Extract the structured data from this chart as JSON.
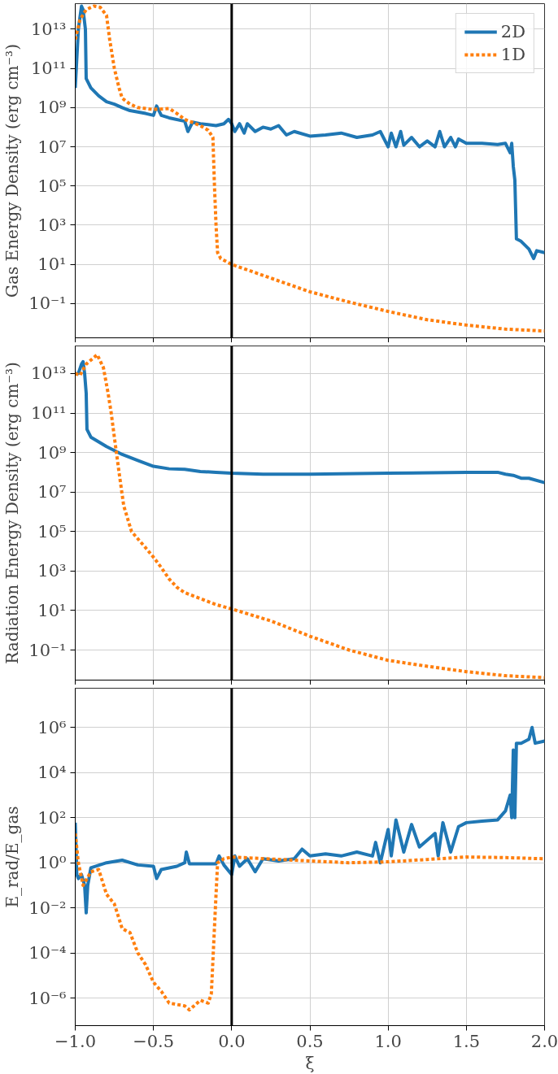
{
  "chart_data": [
    {
      "type": "line",
      "ylabel": "Gas Energy Density (erg cm⁻³)",
      "log": "y",
      "grid": true,
      "legend": "top right",
      "tick_labels": "y",
      "xlim": [
        -1.0,
        2.0
      ],
      "xticks": [
        -1.0,
        -0.5,
        0.0,
        0.5,
        1.0,
        1.5,
        2.0
      ],
      "ylim": [
        0.0018,
        200000000000000.0
      ],
      "yticks": [
        {
          "value": 0.1,
          "label": "10⁻¹"
        },
        {
          "value": 10,
          "label": "10¹"
        },
        {
          "value": 1000,
          "label": "10³"
        },
        {
          "value": 100000,
          "label": "10⁵"
        },
        {
          "value": 10000000.0,
          "label": "10⁷"
        },
        {
          "value": 1000000000.0,
          "label": "10⁹"
        },
        {
          "value": 100000000000.0,
          "label": "10¹¹"
        },
        {
          "value": 10000000000000.0,
          "label": "10¹³"
        }
      ],
      "ref_lines": [
        {
          "axis": "x",
          "value": 0.0,
          "color": "#000000"
        }
      ],
      "series": [
        {
          "name": "2D",
          "color": "#1f77b4",
          "line_style": "solid",
          "x": [
            -1.0,
            -0.98,
            -0.96,
            -0.95,
            -0.935,
            -0.93,
            -0.9,
            -0.85,
            -0.8,
            -0.75,
            -0.7,
            -0.65,
            -0.6,
            -0.55,
            -0.5,
            -0.48,
            -0.45,
            -0.4,
            -0.3,
            -0.28,
            -0.25,
            -0.2,
            -0.1,
            -0.05,
            -0.02,
            0.0,
            0.02,
            0.05,
            0.08,
            0.1,
            0.15,
            0.2,
            0.25,
            0.3,
            0.35,
            0.4,
            0.5,
            0.6,
            0.7,
            0.8,
            0.9,
            0.95,
            1.0,
            1.02,
            1.05,
            1.08,
            1.1,
            1.15,
            1.2,
            1.25,
            1.3,
            1.33,
            1.36,
            1.4,
            1.43,
            1.45,
            1.5,
            1.6,
            1.7,
            1.75,
            1.78,
            1.79,
            1.8,
            1.81,
            1.82,
            1.85,
            1.9,
            1.93,
            1.95,
            2.0
          ],
          "values": [
            10000000000.0,
            10000000000000.0,
            150000000000000.0,
            100000000000000.0,
            10000000000000.0,
            30000000000.0,
            10000000000.0,
            4000000000.0,
            2000000000.0,
            1500000000.0,
            1000000000.0,
            700000000.0,
            600000000.0,
            500000000.0,
            400000000.0,
            1200000000.0,
            400000000.0,
            300000000.0,
            200000000.0,
            60000000.0,
            180000000.0,
            150000000.0,
            120000000.0,
            150000000.0,
            250000000.0,
            150000000.0,
            60000000.0,
            150000000.0,
            50000000.0,
            150000000.0,
            60000000.0,
            100000000.0,
            80000000.0,
            120000000.0,
            40000000.0,
            60000000.0,
            35000000.0,
            40000000.0,
            50000000.0,
            30000000.0,
            40000000.0,
            60000000.0,
            10000000.0,
            50000000.0,
            10000000.0,
            60000000.0,
            12000000.0,
            30000000.0,
            10000000.0,
            20000000.0,
            10000000.0,
            60000000.0,
            10000000.0,
            30000000.0,
            10000000.0,
            25000000.0,
            15000000.0,
            15000000.0,
            13000000.0,
            15000000.0,
            5000000.0,
            15000000.0,
            1000000.0,
            200000.0,
            200,
            150,
            60,
            20,
            50,
            40
          ]
        },
        {
          "name": "1D",
          "color": "#ff7f0e",
          "line_style": "dotted",
          "x": [
            -1.0,
            -0.97,
            -0.93,
            -0.88,
            -0.84,
            -0.8,
            -0.78,
            -0.75,
            -0.72,
            -0.7,
            -0.65,
            -0.6,
            -0.5,
            -0.4,
            -0.35,
            -0.3,
            -0.2,
            -0.15,
            -0.12,
            -0.11,
            -0.1,
            -0.09,
            -0.07,
            0.0,
            0.25,
            0.5,
            0.75,
            1.0,
            1.25,
            1.5,
            1.75,
            2.0
          ],
          "values": [
            3000000000000.0,
            30000000000000.0,
            100000000000000.0,
            150000000000000.0,
            130000000000000.0,
            50000000000000.0,
            3000000000000.0,
            100000000000.0,
            10000000000.0,
            3000000000.0,
            1500000000.0,
            1000000000.0,
            800000000.0,
            900000000.0,
            500000000.0,
            250000000.0,
            120000000.0,
            70000000.0,
            30000000.0,
            100000.0,
            1000,
            40,
            20,
            10,
            2,
            0.4,
            0.12,
            0.04,
            0.015,
            0.008,
            0.005,
            0.004
          ]
        }
      ]
    },
    {
      "type": "line",
      "ylabel": "Radiation Energy Density (erg cm⁻³)",
      "log": "y",
      "grid": true,
      "tick_labels": "y",
      "xlim": [
        -1.0,
        2.0
      ],
      "xticks": [
        -1.0,
        -0.5,
        0.0,
        0.5,
        1.0,
        1.5,
        2.0
      ],
      "ylim": [
        0.003,
        250000000000000.0
      ],
      "yticks": [
        {
          "value": 0.1,
          "label": "10⁻¹"
        },
        {
          "value": 10,
          "label": "10¹"
        },
        {
          "value": 1000,
          "label": "10³"
        },
        {
          "value": 100000,
          "label": "10⁵"
        },
        {
          "value": 10000000.0,
          "label": "10⁷"
        },
        {
          "value": 1000000000.0,
          "label": "10⁹"
        },
        {
          "value": 100000000000.0,
          "label": "10¹¹"
        },
        {
          "value": 10000000000000.0,
          "label": "10¹³"
        }
      ],
      "ref_lines": [
        {
          "axis": "x",
          "value": 0.0,
          "color": "#000000"
        }
      ],
      "series": [
        {
          "color": "#1f77b4",
          "line_style": "solid",
          "x": [
            -1.0,
            -0.98,
            -0.96,
            -0.95,
            -0.94,
            -0.93,
            -0.925,
            -0.9,
            -0.8,
            -0.7,
            -0.6,
            -0.5,
            -0.4,
            -0.3,
            -0.2,
            -0.1,
            0.0,
            0.2,
            0.5,
            1.0,
            1.5,
            1.7,
            1.75,
            1.8,
            1.85,
            1.9,
            2.0
          ],
          "values": [
            10000000000000.0,
            10000000000000.0,
            30000000000000.0,
            40000000000000.0,
            10000000000000.0,
            1000000000000.0,
            15000000000.0,
            6000000000.0,
            2000000000.0,
            800000000.0,
            400000000.0,
            200000000.0,
            150000000.0,
            140000000.0,
            110000000.0,
            100000000.0,
            90000000.0,
            80000000.0,
            80000000.0,
            90000000.0,
            100000000.0,
            100000000.0,
            80000000.0,
            70000000.0,
            50000000.0,
            50000000.0,
            30000000.0
          ]
        },
        {
          "color": "#ff7f0e",
          "line_style": "dotted",
          "x": [
            -1.0,
            -0.97,
            -0.93,
            -0.86,
            -0.82,
            -0.79,
            -0.77,
            -0.75,
            -0.72,
            -0.69,
            -0.64,
            -0.55,
            -0.5,
            -0.45,
            -0.4,
            -0.35,
            -0.3,
            -0.2,
            -0.1,
            0.0,
            0.25,
            0.5,
            0.75,
            1.0,
            1.25,
            1.5,
            1.75,
            2.0
          ],
          "values": [
            10000000000000.0,
            8000000000000.0,
            30000000000000.0,
            90000000000000.0,
            20000000000000.0,
            1000000000000.0,
            100000000000.0,
            6000000000.0,
            100000000.0,
            2000000.0,
            100000.0,
            15000.0,
            5000,
            1500,
            400,
            150,
            80,
            40,
            20,
            12,
            3,
            0.5,
            0.1,
            0.03,
            0.015,
            0.008,
            0.005,
            0.004
          ]
        }
      ]
    },
    {
      "type": "line",
      "ylabel": "E_rad/E_gas",
      "xlabel": "ξ",
      "log": "y",
      "grid": true,
      "xlim": [
        -1.0,
        2.0
      ],
      "xticks": [
        {
          "value": -1.0,
          "label": "−1.0"
        },
        {
          "value": -0.5,
          "label": "−0.5"
        },
        {
          "value": 0.0,
          "label": "0.0"
        },
        {
          "value": 0.5,
          "label": "0.5"
        },
        {
          "value": 1.0,
          "label": "1.0"
        },
        {
          "value": 1.5,
          "label": "1.5"
        },
        {
          "value": 2.0,
          "label": "2.0"
        }
      ],
      "ylim": [
        6e-08,
        55000000.0
      ],
      "yticks": [
        {
          "value": 1e-06,
          "label": "10⁻⁶"
        },
        {
          "value": 0.0001,
          "label": "10⁻⁴"
        },
        {
          "value": 0.01,
          "label": "10⁻²"
        },
        {
          "value": 1,
          "label": "10⁰"
        },
        {
          "value": 100,
          "label": "10²"
        },
        {
          "value": 10000,
          "label": "10⁴"
        },
        {
          "value": 1000000,
          "label": "10⁶"
        }
      ],
      "ref_lines": [
        {
          "axis": "x",
          "value": 0.0,
          "color": "#000000"
        }
      ],
      "series": [
        {
          "color": "#1f77b4",
          "line_style": "solid",
          "x": [
            -1.0,
            -0.99,
            -0.98,
            -0.96,
            -0.94,
            -0.93,
            -0.92,
            -0.9,
            -0.8,
            -0.7,
            -0.6,
            -0.5,
            -0.48,
            -0.45,
            -0.35,
            -0.3,
            -0.29,
            -0.27,
            -0.2,
            -0.1,
            -0.08,
            -0.05,
            0.0,
            0.02,
            0.05,
            0.1,
            0.15,
            0.2,
            0.3,
            0.4,
            0.45,
            0.5,
            0.6,
            0.7,
            0.8,
            0.9,
            0.92,
            0.95,
            1.0,
            1.02,
            1.05,
            1.1,
            1.15,
            1.2,
            1.3,
            1.32,
            1.35,
            1.4,
            1.45,
            1.5,
            1.6,
            1.7,
            1.75,
            1.78,
            1.79,
            1.8,
            1.81,
            1.82,
            1.85,
            1.9,
            1.92,
            1.94,
            2.0
          ],
          "values": [
            60,
            0.3,
            0.2,
            0.3,
            0.1,
            0.006,
            0.1,
            0.6,
            1,
            1.3,
            0.8,
            0.7,
            0.2,
            0.5,
            0.7,
            1,
            3,
            0.9,
            0.9,
            0.9,
            2,
            0.8,
            0.3,
            2,
            0.7,
            1.5,
            0.4,
            1.5,
            1.2,
            1.5,
            4,
            2,
            2.5,
            2,
            3,
            2,
            8,
            1,
            30,
            2,
            80,
            3,
            50,
            5,
            20,
            2,
            60,
            3,
            40,
            60,
            70,
            80,
            200,
            1000,
            100,
            100000,
            100,
            200000,
            200000,
            300000,
            1000000,
            200000,
            250000
          ]
        },
        {
          "color": "#ff7f0e",
          "line_style": "dotted",
          "x": [
            -1.0,
            -0.98,
            -0.95,
            -0.9,
            -0.85,
            -0.8,
            -0.75,
            -0.7,
            -0.65,
            -0.6,
            -0.55,
            -0.5,
            -0.45,
            -0.4,
            -0.3,
            -0.27,
            -0.2,
            -0.15,
            -0.13,
            -0.1,
            -0.09,
            -0.05,
            0.0,
            0.4,
            0.75,
            1.0,
            1.25,
            1.5,
            1.75,
            2.0
          ],
          "values": [
            20,
            1,
            0.1,
            0.4,
            0.5,
            0.04,
            0.015,
            0.0012,
            0.0008,
            0.0001,
            3e-05,
            5e-06,
            2e-06,
            6e-07,
            4.5e-07,
            3e-07,
            8e-07,
            6e-07,
            1.6e-06,
            0.04,
            1,
            1.5,
            1.8,
            1.3,
            1,
            1.1,
            1.4,
            1.8,
            1.7,
            1.5
          ]
        }
      ]
    }
  ]
}
